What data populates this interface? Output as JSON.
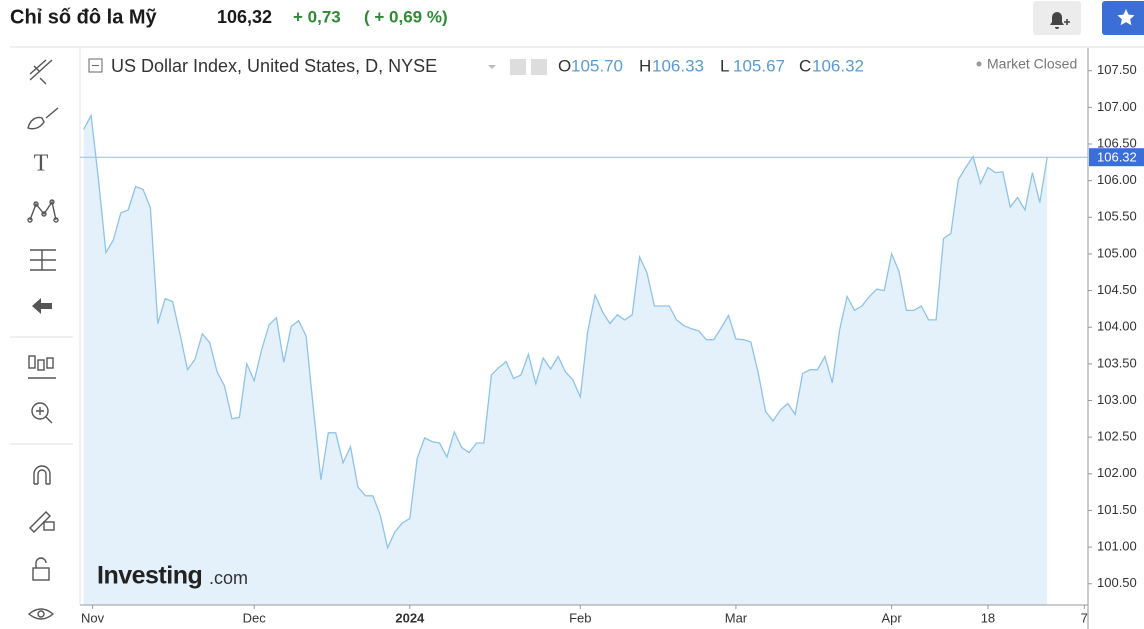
{
  "header": {
    "title": "Chỉ số đô la Mỹ",
    "price": "106,32",
    "change": "+ 0,73",
    "change_percent": "( + 0,69 %)"
  },
  "chart_data": {
    "type": "line",
    "series": [
      {
        "name": "US Dollar Index, United States, D, NYSE",
        "color": "#8ec3ea",
        "fill_color": "#e4f1fb",
        "values": [
          106.7,
          106.89,
          106.01,
          105.02,
          105.19,
          105.56,
          105.6,
          105.92,
          105.88,
          105.63,
          104.05,
          104.39,
          104.35,
          103.9,
          103.42,
          103.56,
          103.91,
          103.79,
          103.39,
          103.2,
          102.75,
          102.77,
          103.5,
          103.27,
          103.69,
          104.03,
          104.13,
          103.52,
          104.01,
          104.09,
          103.88,
          102.87,
          101.92,
          102.56,
          102.56,
          102.15,
          102.37,
          101.82,
          101.7,
          101.7,
          101.44,
          100.99,
          101.21,
          101.33,
          101.39,
          102.21,
          102.49,
          102.44,
          102.42,
          102.23,
          102.57,
          102.36,
          102.29,
          102.42,
          102.42,
          103.35,
          103.45,
          103.53,
          103.3,
          103.35,
          103.63,
          103.23,
          103.58,
          103.43,
          103.6,
          103.39,
          103.28,
          103.05,
          103.94,
          104.44,
          104.21,
          104.05,
          104.17,
          104.1,
          104.17,
          104.96,
          104.74,
          104.29,
          104.29,
          104.29,
          104.1,
          104.02,
          103.98,
          103.95,
          103.83,
          103.83,
          103.99,
          104.16,
          103.84,
          103.83,
          103.8,
          103.38,
          102.85,
          102.72,
          102.87,
          102.96,
          102.81,
          103.37,
          103.42,
          103.42,
          103.6,
          103.24,
          103.97,
          104.42,
          104.23,
          104.29,
          104.42,
          104.52,
          104.5,
          105.0,
          104.76,
          104.23,
          104.23,
          104.29,
          104.1,
          104.1,
          105.21,
          105.28,
          106.01,
          106.18,
          106.33,
          105.96,
          106.18,
          106.11,
          106.12,
          105.64,
          105.77,
          105.6,
          106.11,
          105.7,
          106.32
        ]
      }
    ],
    "ohlc": [
      {
        "key": "O",
        "value": "105.70"
      },
      {
        "key": "H",
        "value": "106.33"
      },
      {
        "key": "L",
        "value": "105.67"
      },
      {
        "key": "C",
        "value": "106.32"
      }
    ],
    "status": "Market Closed",
    "last_price": 106.32,
    "last_price_color": "#3a6fd8",
    "ylim": [
      100.21,
      107.81
    ],
    "yticks": [
      {
        "value": 100.5,
        "label": "100.50"
      },
      {
        "value": 101,
        "label": "101.00"
      },
      {
        "value": 101.5,
        "label": "101.50"
      },
      {
        "value": 102,
        "label": "102.00"
      },
      {
        "value": 102.5,
        "label": "102.50"
      },
      {
        "value": 103,
        "label": "103.00"
      },
      {
        "value": 103.5,
        "label": "103.50"
      },
      {
        "value": 104,
        "label": "104.00"
      },
      {
        "value": 104.5,
        "label": "104.50"
      },
      {
        "value": 105,
        "label": "105.00"
      },
      {
        "value": 105.5,
        "label": "105.50"
      },
      {
        "value": 106,
        "label": "106.00"
      },
      {
        "value": 106.5,
        "label": "106.50"
      },
      {
        "value": 107,
        "label": "107.00"
      },
      {
        "value": 107.5,
        "label": "107.50"
      }
    ],
    "xlim": [
      -0.5,
      135.5
    ],
    "xticks": [
      {
        "value": 1.2,
        "label": "Nov"
      },
      {
        "value": 23,
        "label": "Dec"
      },
      {
        "value": 44,
        "label": "2024"
      },
      {
        "value": 67,
        "label": "Feb"
      },
      {
        "value": 88,
        "label": "Mar"
      },
      {
        "value": 109,
        "label": "Apr"
      },
      {
        "value": 122,
        "label": "18"
      },
      {
        "value": 135,
        "label": "7"
      }
    ],
    "watermark": "Investing",
    "watermark_suffix": ".com"
  }
}
